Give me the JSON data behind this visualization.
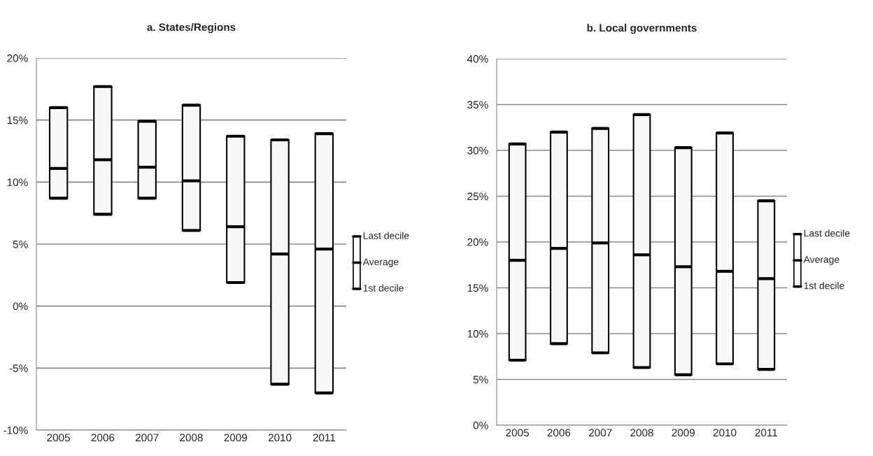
{
  "chart_data": [
    {
      "type": "box",
      "title": "a. States/Regions",
      "categories": [
        "2005",
        "2006",
        "2007",
        "2008",
        "2009",
        "2010",
        "2011"
      ],
      "boxes": [
        {
          "low": 8.7,
          "q1": 8.7,
          "median": 11.1,
          "q3": 16.0,
          "high": 16.0
        },
        {
          "low": 7.4,
          "q1": 7.4,
          "median": 11.8,
          "q3": 17.7,
          "high": 17.7
        },
        {
          "low": 8.7,
          "q1": 8.7,
          "median": 11.2,
          "q3": 14.9,
          "high": 14.9
        },
        {
          "low": 6.1,
          "q1": 6.1,
          "median": 10.1,
          "q3": 16.2,
          "high": 16.2
        },
        {
          "low": 1.9,
          "q1": 1.9,
          "median": 6.4,
          "q3": 13.7,
          "high": 13.7
        },
        {
          "low": -6.3,
          "q1": -6.3,
          "median": 4.2,
          "q3": 13.4,
          "high": 13.4
        },
        {
          "low": -7.0,
          "q1": -7.0,
          "median": 4.6,
          "q3": 13.9,
          "high": 13.9
        }
      ],
      "ylim": [
        -10,
        20
      ],
      "yticks": [
        {
          "value": -10,
          "label": "-10%"
        },
        {
          "value": -5,
          "label": "-5%"
        },
        {
          "value": 0,
          "label": "0%"
        },
        {
          "value": 5,
          "label": "5%"
        },
        {
          "value": 10,
          "label": "10%"
        },
        {
          "value": 15,
          "label": "15%"
        },
        {
          "value": 20,
          "label": "20%"
        }
      ],
      "grid": "y",
      "color": "#f7f7f7",
      "annotations": [
        "Last decile",
        "Average",
        "1st decile"
      ]
    },
    {
      "type": "box",
      "title": "b. Local governments",
      "categories": [
        "2005",
        "2006",
        "2007",
        "2008",
        "2009",
        "2010",
        "2011"
      ],
      "boxes": [
        {
          "low": 7.1,
          "q1": 7.1,
          "median": 18.0,
          "q3": 30.7,
          "high": 30.7
        },
        {
          "low": 8.9,
          "q1": 8.9,
          "median": 19.3,
          "q3": 32.0,
          "high": 32.0
        },
        {
          "low": 7.9,
          "q1": 7.9,
          "median": 19.9,
          "q3": 32.4,
          "high": 32.4
        },
        {
          "low": 6.3,
          "q1": 6.3,
          "median": 18.6,
          "q3": 33.9,
          "high": 33.9
        },
        {
          "low": 5.5,
          "q1": 5.5,
          "median": 17.3,
          "q3": 30.3,
          "high": 30.3
        },
        {
          "low": 6.7,
          "q1": 6.7,
          "median": 16.8,
          "q3": 31.9,
          "high": 31.9
        },
        {
          "low": 6.1,
          "q1": 6.1,
          "median": 16.0,
          "q3": 24.5,
          "high": 24.5
        }
      ],
      "ylim": [
        0,
        40
      ],
      "yticks": [
        {
          "value": 0,
          "label": "0%"
        },
        {
          "value": 5,
          "label": "5%"
        },
        {
          "value": 10,
          "label": "10%"
        },
        {
          "value": 15,
          "label": "15%"
        },
        {
          "value": 20,
          "label": "20%"
        },
        {
          "value": 25,
          "label": "25%"
        },
        {
          "value": 30,
          "label": "30%"
        },
        {
          "value": 35,
          "label": "35%"
        },
        {
          "value": 40,
          "label": "40%"
        }
      ],
      "grid": "y",
      "color": "#f7f7f7",
      "annotations": [
        "Last decile",
        "Average",
        "1st decile"
      ]
    }
  ]
}
